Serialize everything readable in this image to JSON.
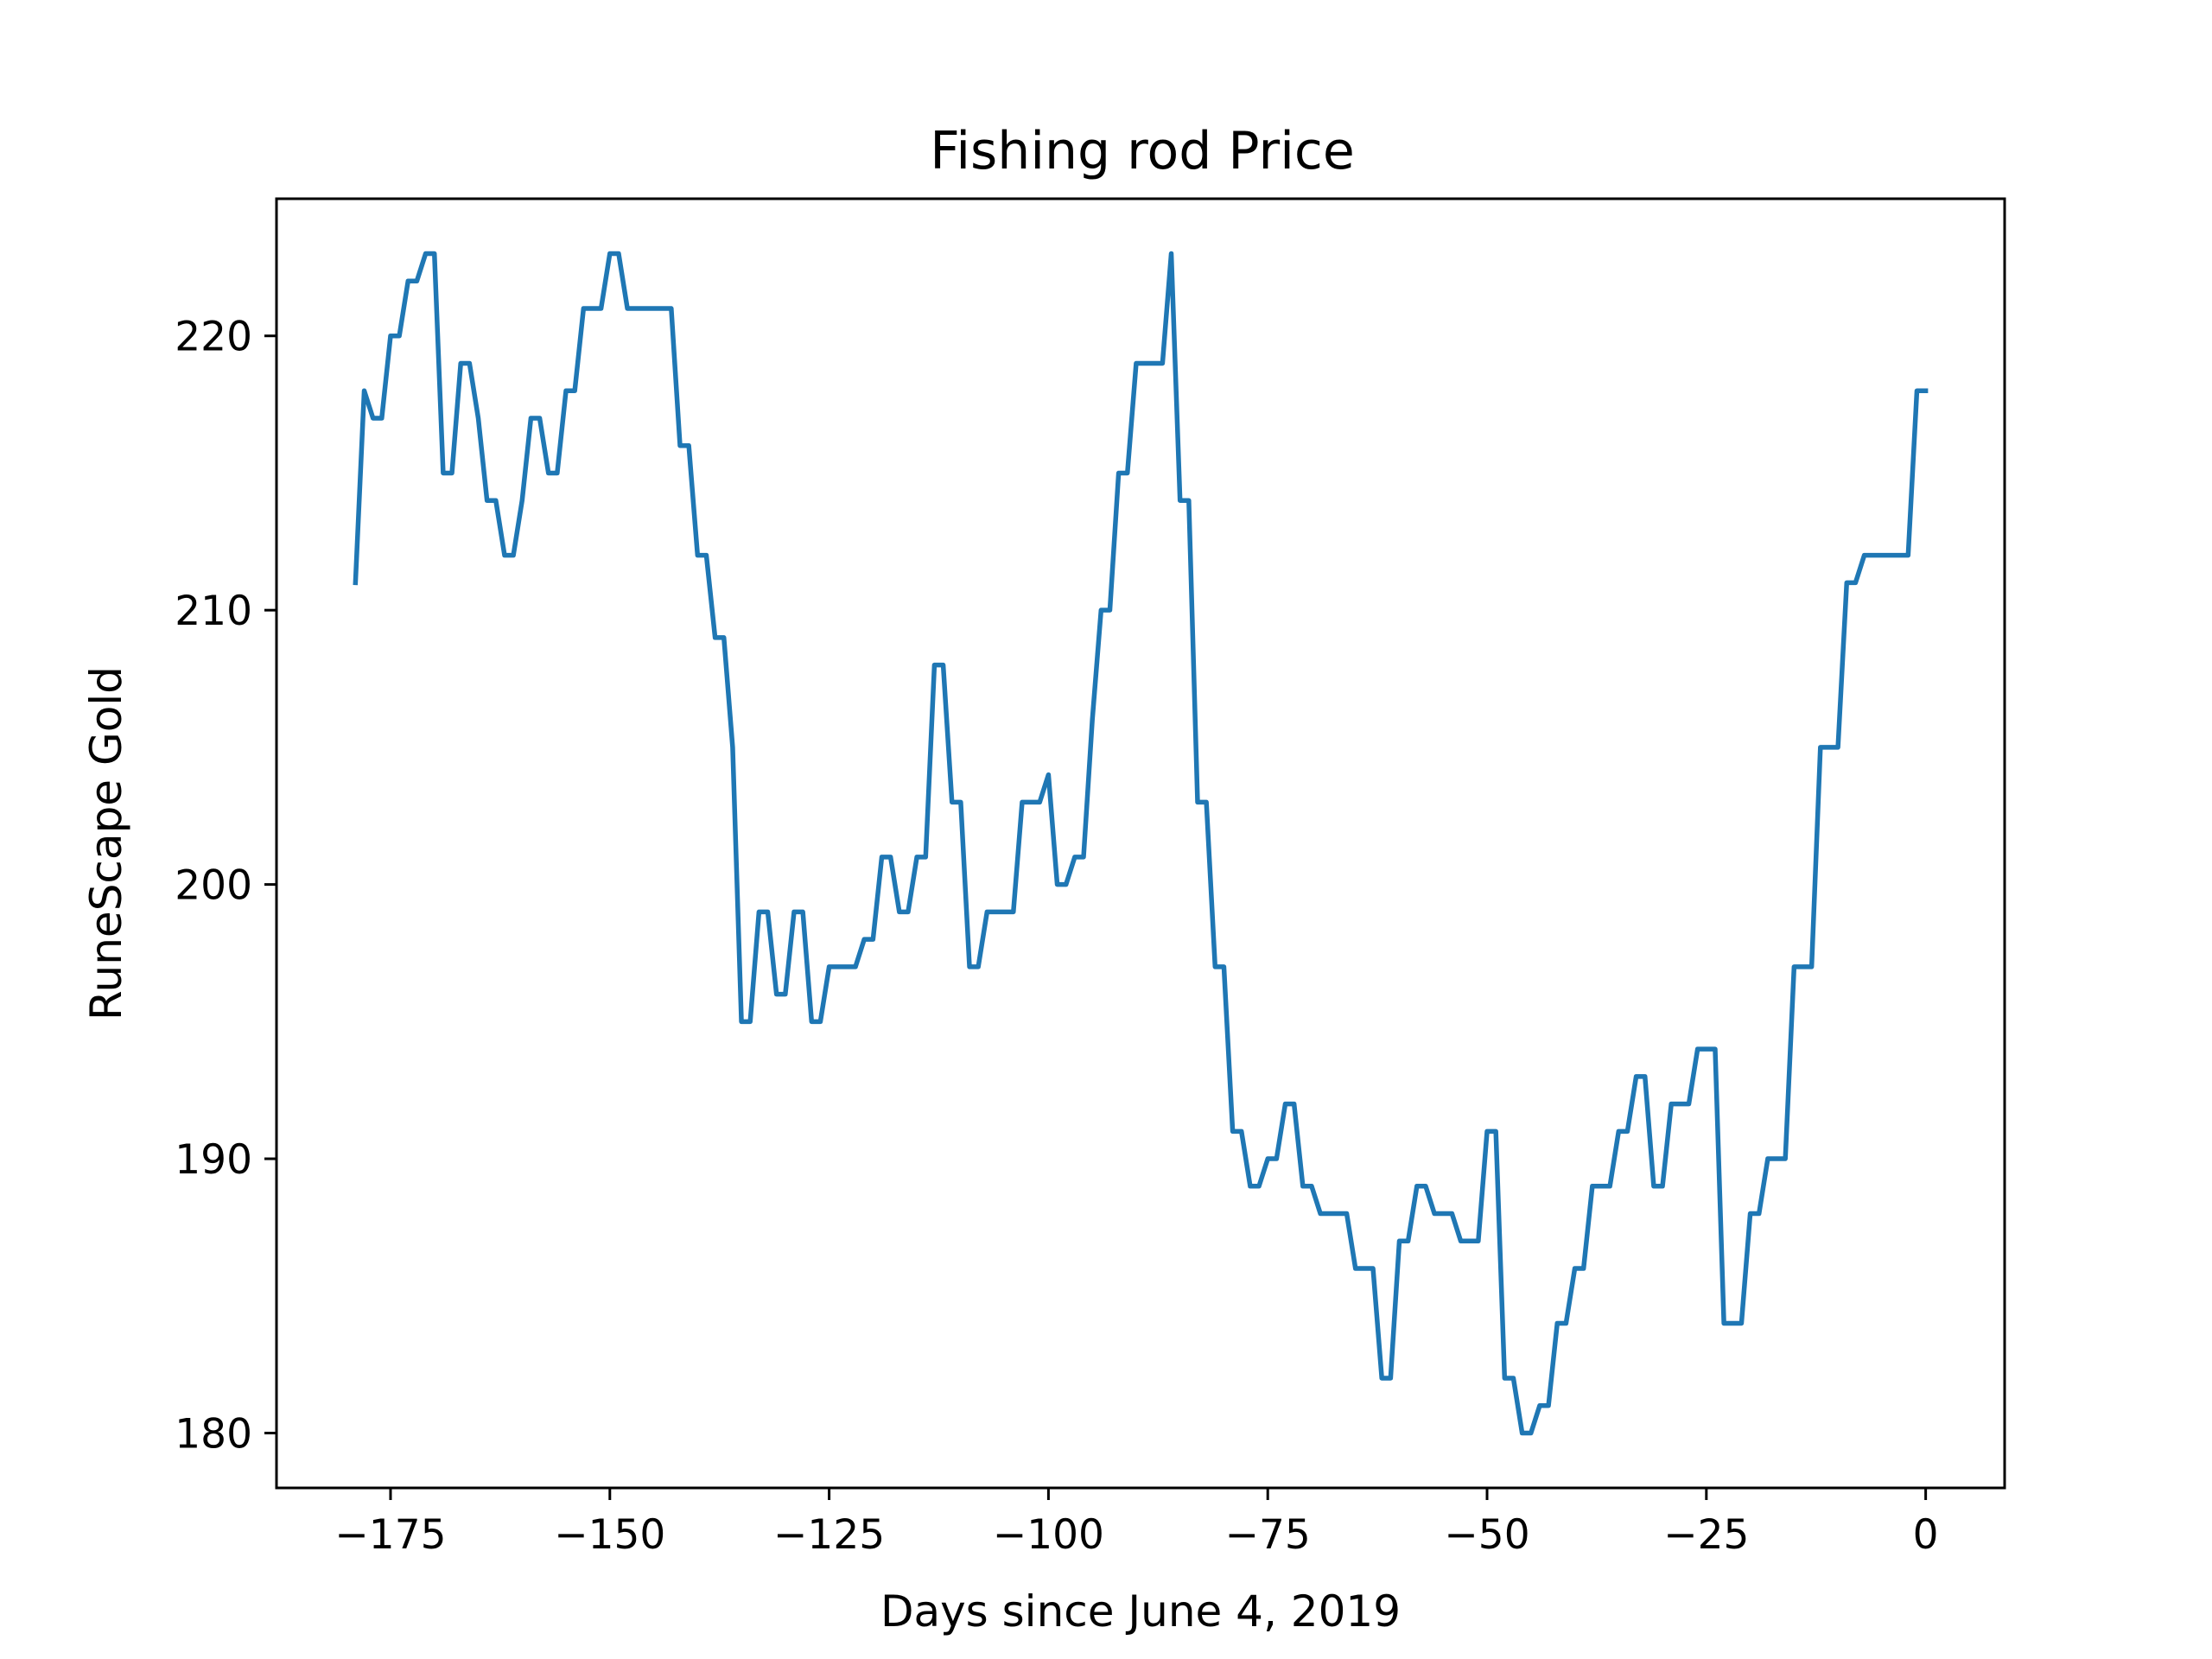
{
  "chart_data": {
    "type": "line",
    "title": "Fishing rod Price",
    "xlabel": "Days since June 4, 2019",
    "ylabel": "RuneScape Gold",
    "xlim": [
      -188,
      9
    ],
    "ylim": [
      178,
      225
    ],
    "xticks": [
      -175,
      -150,
      -125,
      -100,
      -75,
      -50,
      -25,
      0
    ],
    "yticks": [
      180,
      190,
      200,
      210,
      220
    ],
    "grid": false,
    "legend": "none",
    "line_color": "#1f77b4",
    "series": [
      {
        "x": [
          -179,
          -178,
          -177,
          -176,
          -175,
          -174,
          -173,
          -172,
          -171,
          -170,
          -169,
          -168,
          -167,
          -166,
          -165,
          -164,
          -163,
          -162,
          -161,
          -160,
          -159,
          -158,
          -157,
          -156,
          -155,
          -154,
          -153,
          -152,
          -151,
          -150,
          -149,
          -148,
          -147,
          -146,
          -145,
          -144,
          -143,
          -142,
          -141,
          -140,
          -139,
          -138,
          -137,
          -136,
          -135,
          -134,
          -133,
          -132,
          -131,
          -130,
          -129,
          -128,
          -127,
          -126,
          -125,
          -124,
          -123,
          -122,
          -121,
          -120,
          -119,
          -118,
          -117,
          -116,
          -115,
          -114,
          -113,
          -112,
          -111,
          -110,
          -109,
          -108,
          -107,
          -106,
          -105,
          -104,
          -103,
          -102,
          -101,
          -100,
          -99,
          -98,
          -97,
          -96,
          -95,
          -94,
          -93,
          -92,
          -91,
          -90,
          -89,
          -88,
          -87,
          -86,
          -85,
          -84,
          -83,
          -82,
          -81,
          -80,
          -79,
          -78,
          -77,
          -76,
          -75,
          -74,
          -73,
          -72,
          -71,
          -70,
          -69,
          -68,
          -67,
          -66,
          -65,
          -64,
          -63,
          -62,
          -61,
          -60,
          -59,
          -58,
          -57,
          -56,
          -55,
          -54,
          -53,
          -52,
          -51,
          -50,
          -49,
          -48,
          -47,
          -46,
          -45,
          -44,
          -43,
          -42,
          -41,
          -40,
          -39,
          -38,
          -37,
          -36,
          -35,
          -34,
          -33,
          -32,
          -31,
          -30,
          -29,
          -28,
          -27,
          -26,
          -25,
          -24,
          -23,
          -22,
          -21,
          -20,
          -19,
          -18,
          -17,
          -16,
          -15,
          -14,
          -13,
          -12,
          -11,
          -10,
          -9,
          -8,
          -7,
          -6,
          -5,
          -4,
          -3,
          -2,
          -1,
          0
        ],
        "values": [
          211,
          218,
          217,
          217,
          220,
          220,
          222,
          222,
          223,
          223,
          215,
          215,
          219,
          219,
          217,
          214,
          214,
          212,
          212,
          214,
          217,
          217,
          215,
          215,
          218,
          218,
          221,
          221,
          221,
          223,
          223,
          221,
          221,
          221,
          221,
          221,
          221,
          216,
          216,
          212,
          212,
          209,
          209,
          205,
          195,
          195,
          199,
          199,
          196,
          196,
          199,
          199,
          195,
          195,
          197,
          197,
          197,
          197,
          198,
          198,
          201,
          201,
          199,
          199,
          201,
          201,
          208,
          208,
          203,
          203,
          197,
          197,
          199,
          199,
          199,
          199,
          203,
          203,
          203,
          204,
          200,
          200,
          201,
          201,
          206,
          210,
          210,
          215,
          215,
          219,
          219,
          219,
          219,
          223,
          214,
          214,
          203,
          203,
          197,
          197,
          191,
          191,
          189,
          189,
          190,
          190,
          192,
          192,
          189,
          189,
          188,
          188,
          188,
          188,
          186,
          186,
          186,
          182,
          182,
          187,
          187,
          189,
          189,
          188,
          188,
          188,
          187,
          187,
          187,
          191,
          191,
          182,
          182,
          180,
          180,
          181,
          181,
          184,
          184,
          186,
          186,
          189,
          189,
          189,
          191,
          191,
          193,
          193,
          189,
          189,
          192,
          192,
          192,
          194,
          194,
          194,
          184,
          184,
          184,
          188,
          188,
          190,
          190,
          190,
          197,
          197,
          197,
          205,
          205,
          205,
          211,
          211,
          212,
          212,
          212,
          212,
          212,
          212,
          218,
          218
        ]
      }
    ]
  }
}
